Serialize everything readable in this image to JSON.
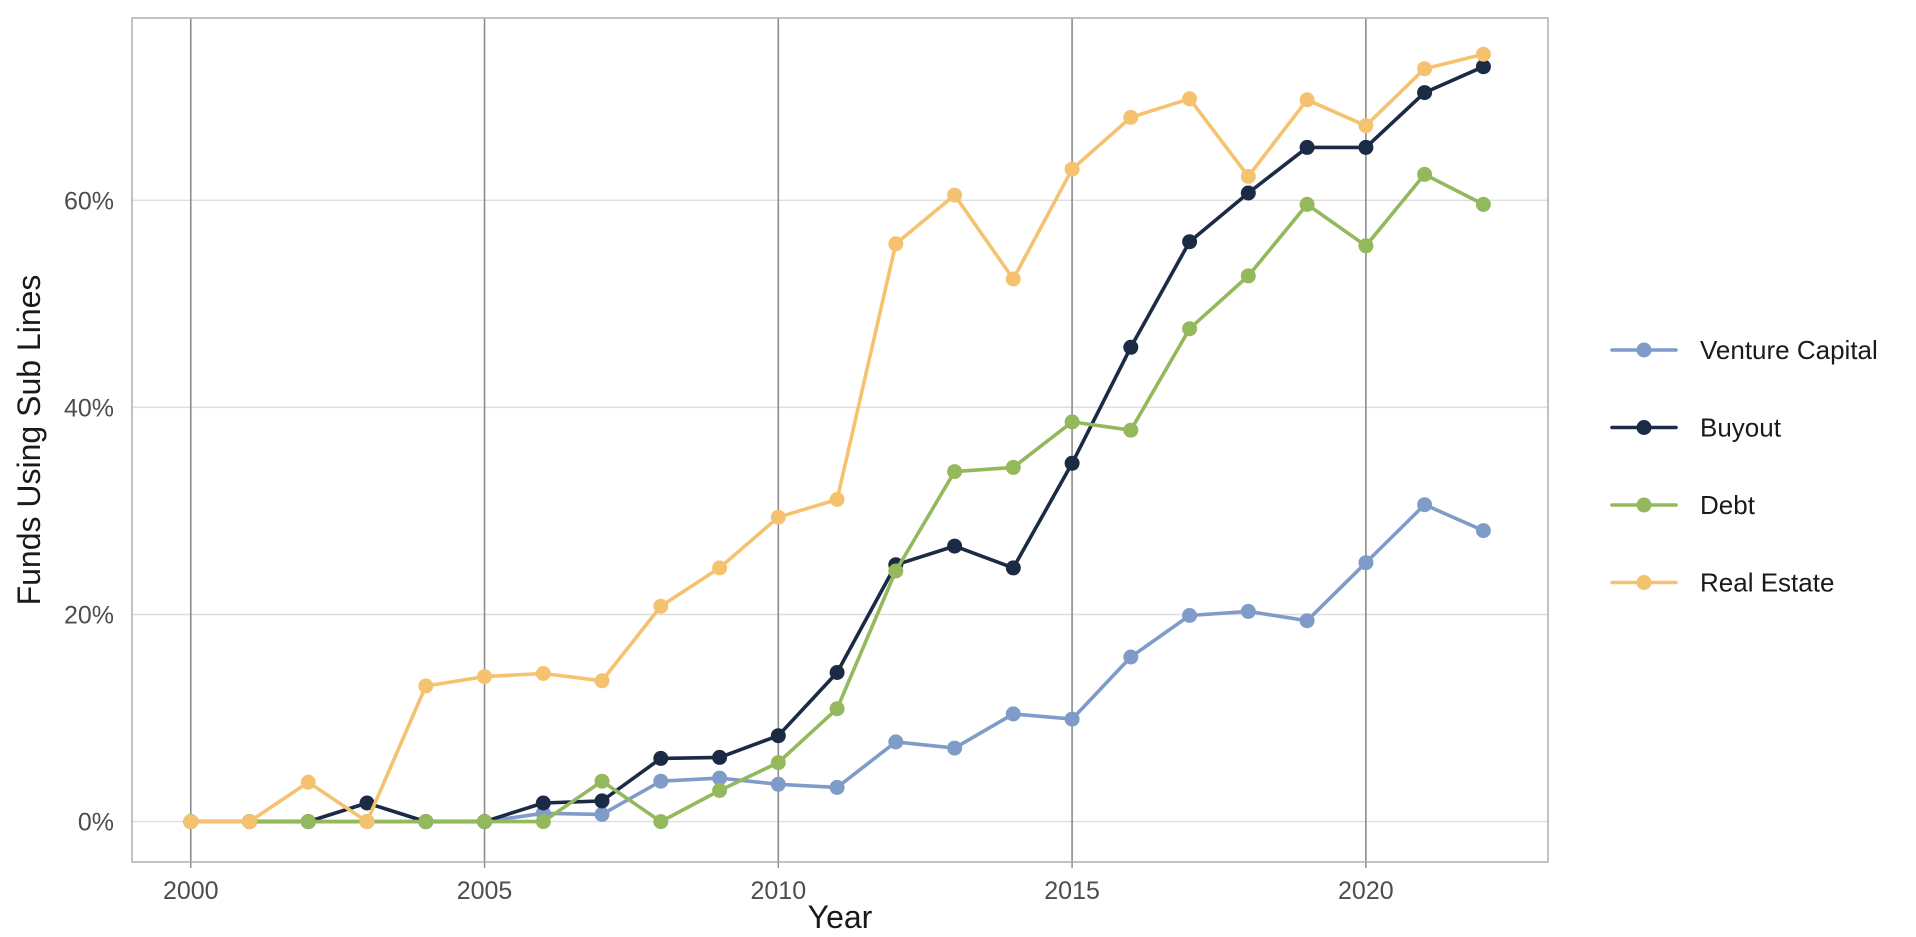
{
  "chart_data": {
    "type": "line",
    "xlabel": "Year",
    "ylabel": "Funds Using Sub Lines",
    "xlim": [
      1999,
      2023.1
    ],
    "ylim": [
      -3.9,
      77.6
    ],
    "x_ticks": [
      2000,
      2005,
      2010,
      2015,
      2020
    ],
    "x_tick_labels": [
      "2000",
      "2005",
      "2010",
      "2015",
      "2020"
    ],
    "y_ticks": [
      0,
      20,
      40,
      60
    ],
    "y_tick_labels": [
      "0%",
      "20%",
      "40%",
      "60%"
    ],
    "grid": {
      "major_x": true,
      "major_y": true
    },
    "legend_position": "right",
    "x": [
      2000,
      2001,
      2002,
      2003,
      2004,
      2005,
      2006,
      2007,
      2008,
      2009,
      2010,
      2011,
      2012,
      2013,
      2014,
      2015,
      2016,
      2017,
      2018,
      2019,
      2020,
      2021,
      2022
    ],
    "series": [
      {
        "name": "Venture Capital",
        "color": "#7f9cc9",
        "values": [
          0,
          0,
          0,
          0,
          0,
          0,
          0.8,
          0.7,
          3.9,
          4.2,
          3.6,
          3.3,
          7.7,
          7.1,
          10.4,
          9.9,
          15.9,
          19.9,
          20.3,
          19.4,
          25.0,
          30.6,
          28.1
        ]
      },
      {
        "name": "Buyout",
        "color": "#1c2b45",
        "values": [
          0,
          0,
          0,
          1.8,
          0,
          0,
          1.8,
          2.0,
          6.1,
          6.2,
          8.3,
          14.4,
          24.8,
          26.6,
          24.5,
          34.6,
          45.8,
          56.0,
          60.7,
          65.1,
          65.1,
          70.4,
          72.9
        ]
      },
      {
        "name": "Debt",
        "color": "#94b85c",
        "values": [
          0,
          0,
          0,
          0,
          0,
          0,
          0,
          3.9,
          0,
          3.0,
          5.7,
          10.9,
          24.2,
          33.8,
          34.2,
          38.6,
          37.8,
          47.6,
          52.7,
          59.6,
          55.6,
          62.5,
          59.6
        ]
      },
      {
        "name": "Real Estate",
        "color": "#f5c26f",
        "values": [
          0,
          0,
          3.8,
          0,
          13.1,
          14.0,
          14.3,
          13.6,
          20.8,
          24.5,
          29.4,
          31.1,
          55.8,
          60.5,
          52.4,
          63.0,
          68.0,
          69.8,
          62.3,
          69.7,
          67.2,
          72.7,
          74.1
        ]
      }
    ]
  }
}
